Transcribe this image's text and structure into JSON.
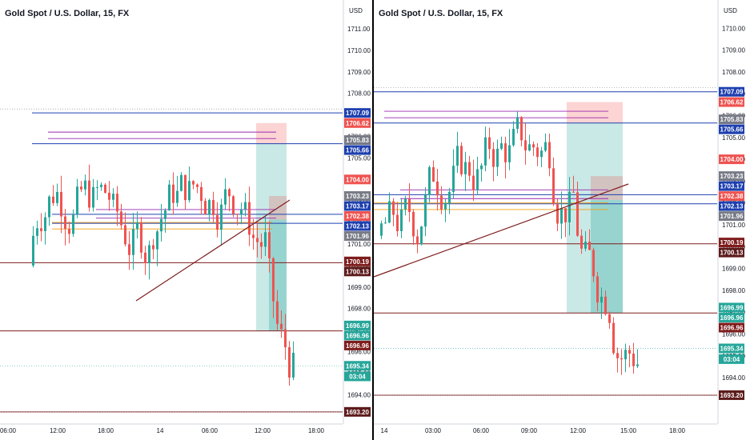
{
  "panels": [
    {
      "title": "Gold Spot / U.S. Dollar, 15, FX",
      "currency": "USD",
      "axis_labels": [
        "1711.00",
        "1710.00",
        "1709.00",
        "1708.00",
        "1707.00",
        "1706.00",
        "1705.00",
        "1704.00",
        "1703.00",
        "1702.00",
        "1701.00",
        "1700.00",
        "1699.00",
        "1698.00",
        "1697.00",
        "1696.00",
        "1695.00",
        "1694.00"
      ],
      "time_labels": [
        "06:00",
        "12:00",
        "18:00",
        "14",
        "06:00",
        "12:00",
        "18:00"
      ],
      "price_tags": [
        {
          "text": "1707.09",
          "color": "#1e40af"
        },
        {
          "text": "1706.62",
          "color": "#ef5350"
        },
        {
          "text": "1705.83",
          "color": "#787b86"
        },
        {
          "text": "1705.66",
          "color": "#1e40af"
        },
        {
          "text": "1704.00",
          "color": "#ef5350"
        },
        {
          "text": "1703.23",
          "color": "#787b86"
        },
        {
          "text": "1703.17",
          "color": "#1e40af"
        },
        {
          "text": "1702.38",
          "color": "#ef5350"
        },
        {
          "text": "1702.13",
          "color": "#1e40af"
        },
        {
          "text": "1701.96",
          "color": "#787b86"
        },
        {
          "text": "1700.19",
          "color": "#7f1d1d"
        },
        {
          "text": "1700.13",
          "color": "#5d1b1b"
        },
        {
          "text": "1696.99",
          "color": "#26a69a"
        },
        {
          "text": "1696.96",
          "color": "#26a69a"
        },
        {
          "text": "1696.96",
          "color": "#7f1d1d"
        },
        {
          "text": "1695.34",
          "color": "#26a69a"
        },
        {
          "text": "03:04",
          "color": "#26a69a"
        },
        {
          "text": "1693.20",
          "color": "#5d1b1b"
        }
      ]
    },
    {
      "title": "Gold Spot / U.S. Dollar, 15, FX",
      "currency": "USD",
      "axis_labels": [
        "1710.00",
        "1709.00",
        "1708.00",
        "1707.00",
        "1706.00",
        "1705.00",
        "1704.00",
        "1703.00",
        "1702.00",
        "1701.00",
        "1700.00",
        "1699.00",
        "1698.00",
        "1697.00",
        "1696.00",
        "1695.00",
        "1694.00"
      ],
      "time_labels": [
        "14",
        "03:00",
        "06:00",
        "09:00",
        "12:00",
        "15:00",
        "18:00"
      ],
      "price_tags": [
        {
          "text": "1707.09",
          "color": "#1e40af"
        },
        {
          "text": "1706.62",
          "color": "#ef5350"
        },
        {
          "text": "1705.83",
          "color": "#787b86"
        },
        {
          "text": "1705.66",
          "color": "#1e40af"
        },
        {
          "text": "1704.00",
          "color": "#ef5350"
        },
        {
          "text": "1703.23",
          "color": "#787b86"
        },
        {
          "text": "1703.17",
          "color": "#1e40af"
        },
        {
          "text": "1702.38",
          "color": "#ef5350"
        },
        {
          "text": "1702.13",
          "color": "#1e40af"
        },
        {
          "text": "1701.96",
          "color": "#787b86"
        },
        {
          "text": "1700.19",
          "color": "#7f1d1d"
        },
        {
          "text": "1700.13",
          "color": "#5d1b1b"
        },
        {
          "text": "1696.99",
          "color": "#26a69a"
        },
        {
          "text": "1696.96",
          "color": "#26a69a"
        },
        {
          "text": "1696.96",
          "color": "#7f1d1d"
        },
        {
          "text": "1695.34",
          "color": "#26a69a"
        },
        {
          "text": "03:04",
          "color": "#26a69a"
        },
        {
          "text": "1693.20",
          "color": "#5d1b1b"
        }
      ]
    }
  ],
  "colors": {
    "up": "#26a69a",
    "down": "#ef5350",
    "blue_line": "#1e40af",
    "maroon_line": "#7f1d1d",
    "purple_line": "#9c27b0",
    "orange_line": "#f59e0b",
    "teal_zone": "#26a69a",
    "red_zone": "#ef5350"
  }
}
